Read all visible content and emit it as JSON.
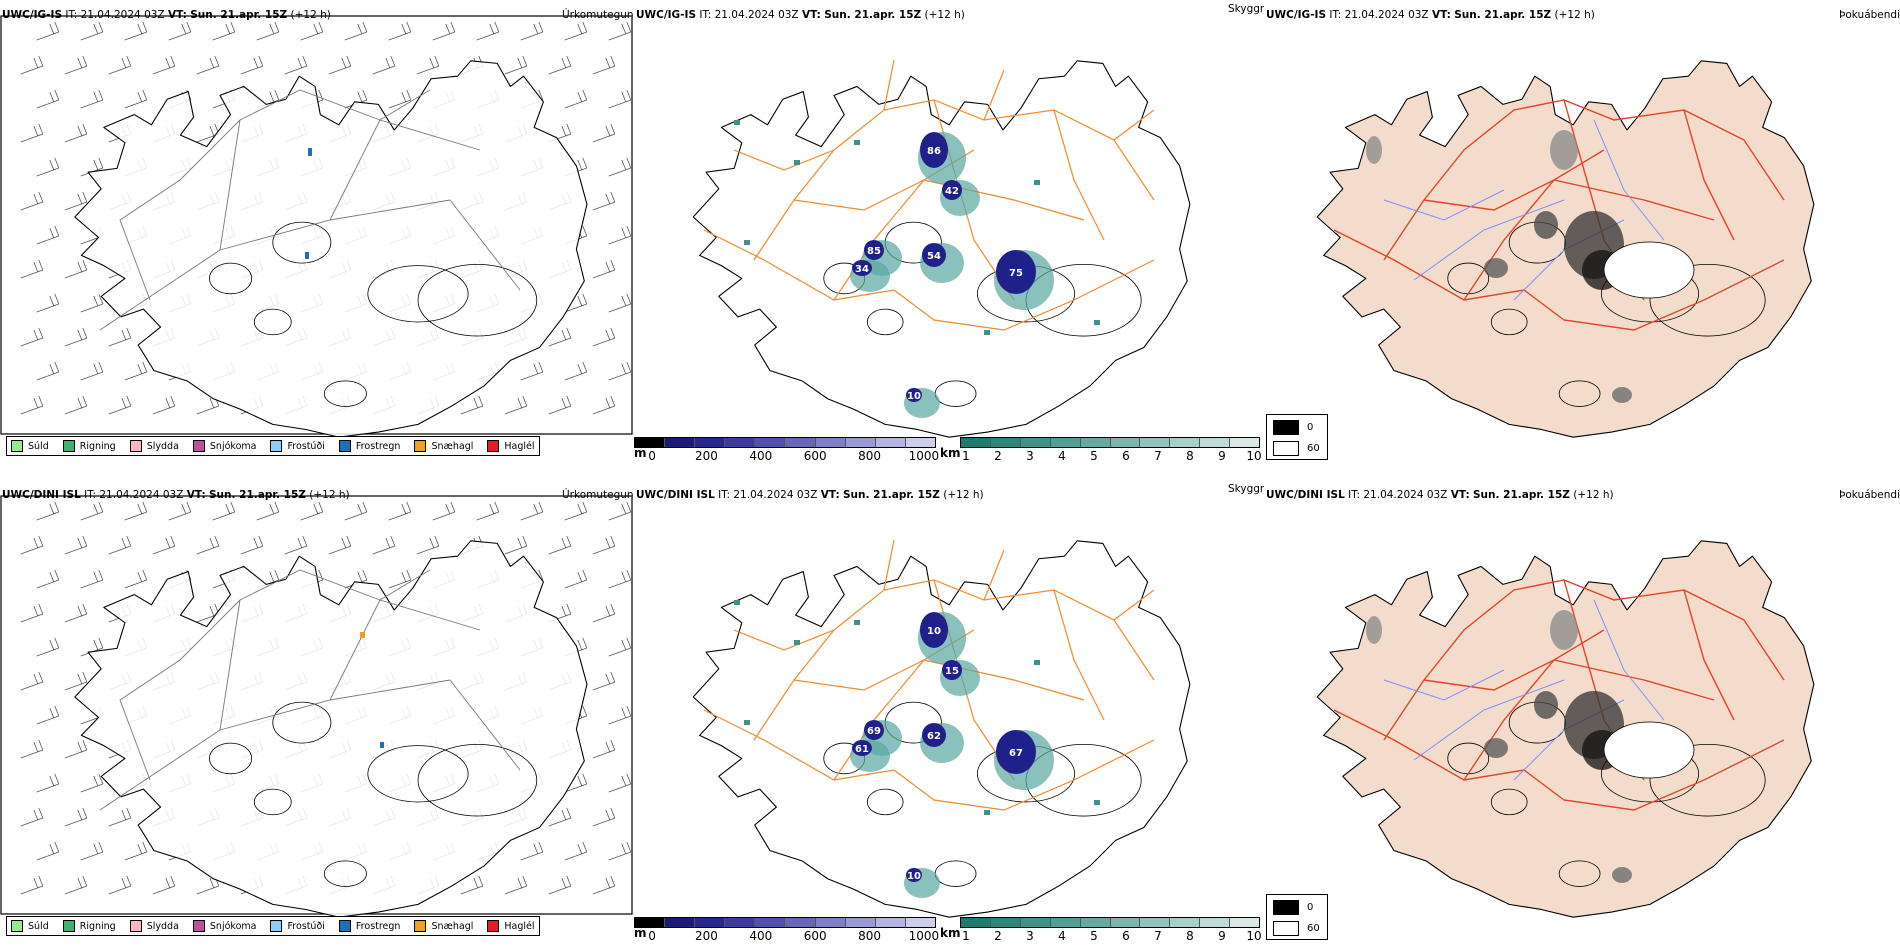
{
  "rows": [
    {
      "id": "igis",
      "header": {
        "model": "UWC/IG-IS",
        "it_label": "IT:",
        "it_value": "21.04.2024 03Z",
        "vt_label": "VT:",
        "vt_value": "Sun. 21.apr. 15Z",
        "lead": "(+12 h)"
      },
      "precip_title": "Úrkomutegund",
      "cloud_title": "Skyggni",
      "fog_title": "Þokuábendi",
      "cloud_labels": [
        "86",
        "42",
        "85",
        "54",
        "34",
        "75",
        "10"
      ]
    },
    {
      "id": "dini",
      "header": {
        "model": "UWC/DINI ISL",
        "it_label": "IT:",
        "it_value": "21.04.2024 03Z",
        "vt_label": "VT:",
        "vt_value": "Sun. 21.apr. 15Z",
        "lead": "(+12 h)"
      },
      "precip_title": "Úrkomutegund",
      "cloud_title": "Skyggni",
      "fog_title": "Þokuábendi",
      "cloud_labels": [
        "10",
        "15",
        "69",
        "62",
        "61",
        "67",
        "10"
      ]
    }
  ],
  "precip_legend": [
    {
      "label": "Súld",
      "color": "#90ee90"
    },
    {
      "label": "Rigning",
      "color": "#3cb371"
    },
    {
      "label": "Slydda",
      "color": "#ffb6c1"
    },
    {
      "label": "Snjókoma",
      "color": "#c04fa0"
    },
    {
      "label": "Frostúði",
      "color": "#87cefa"
    },
    {
      "label": "Frostregn",
      "color": "#1e6fbf"
    },
    {
      "label": "Snæhagl",
      "color": "#f0a020"
    },
    {
      "label": "Haglél",
      "color": "#e02020"
    }
  ],
  "ceiling_bar": {
    "unit": "m",
    "ticks": [
      "0",
      "200",
      "400",
      "600",
      "800",
      "1000"
    ],
    "colors": [
      "#000000",
      "#1a1a7a",
      "#262690",
      "#3a3aa0",
      "#5050b0",
      "#6868bb",
      "#8080c8",
      "#9a9ad4",
      "#b4b4e0",
      "#ceceec"
    ]
  },
  "visibility_bar": {
    "unit": "km",
    "ticks": [
      "1",
      "2",
      "3",
      "4",
      "5",
      "6",
      "7",
      "8",
      "9",
      "10"
    ],
    "colors": [
      "#1f7a70",
      "#2e857c",
      "#3f9189",
      "#529d96",
      "#66a9a3",
      "#7bb5b0",
      "#91c2be",
      "#a8cfcc",
      "#c0dcda",
      "#d8e9e8"
    ]
  },
  "fog_legend": [
    {
      "label": "0",
      "color": "#000000"
    },
    {
      "label": "60",
      "color": "#ffffff"
    }
  ],
  "colors": {
    "land_fog": "#f3dccb",
    "roads": "#f08a2a",
    "roads_fog": "#e0462a",
    "rivers": "#7a90ff",
    "coast": "#000000"
  }
}
